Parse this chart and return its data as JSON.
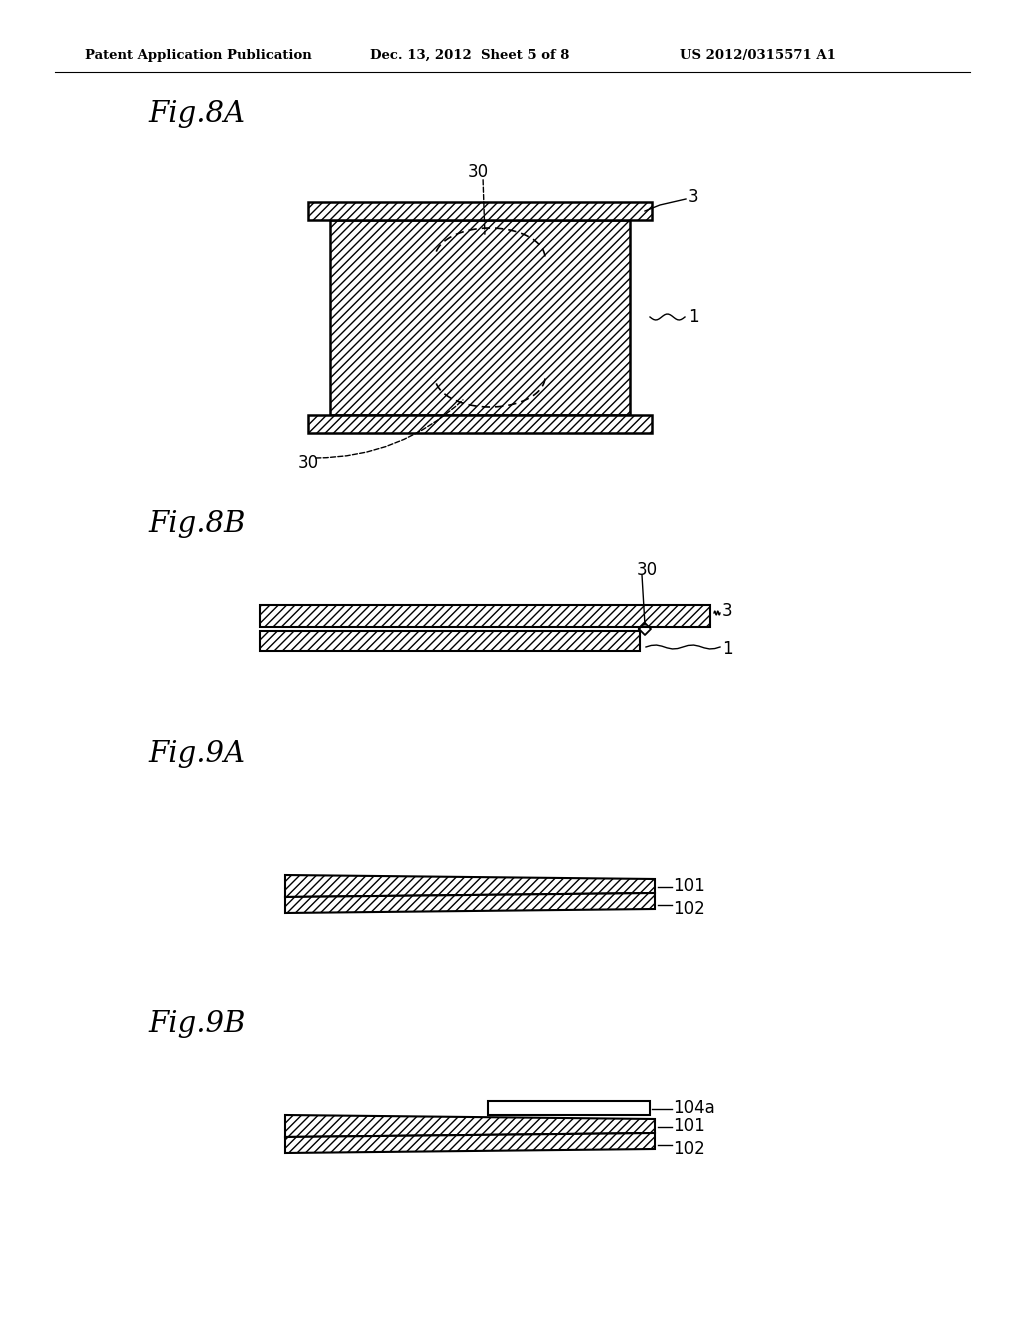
{
  "bg_color": "#ffffff",
  "header_left": "Patent Application Publication",
  "header_mid": "Dec. 13, 2012  Sheet 5 of 8",
  "header_right": "US 2012/0315571 A1",
  "fig8A_label": "Fig.8A",
  "fig8B_label": "Fig.8B",
  "fig9A_label": "Fig.9A",
  "fig9B_label": "Fig.9B",
  "text_color": "#000000"
}
